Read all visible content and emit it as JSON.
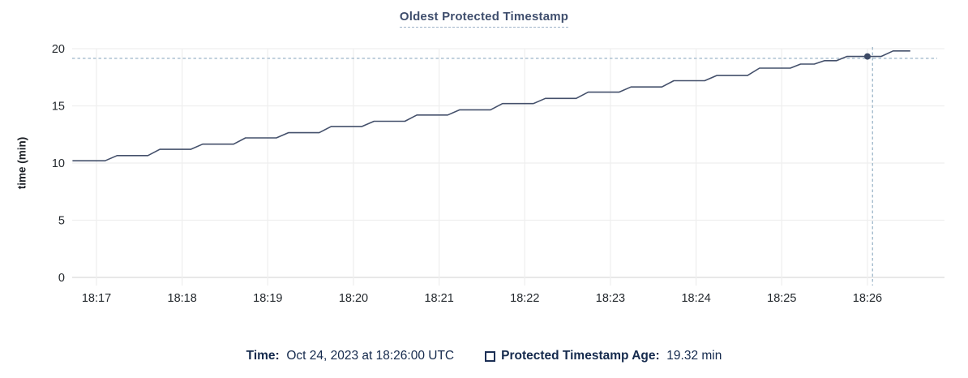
{
  "chart": {
    "title": "Oldest Protected Timestamp",
    "colors": {
      "line": "#44506b",
      "dot": "#3d4a66",
      "title_text": "#3f4e6d",
      "grid": "#efefef",
      "grid_zero": "#dbdbdb",
      "tick_text": "#24292e",
      "crosshair": "#a5bccd",
      "legend_text": "#152a4d",
      "background": "#ffffff"
    }
  },
  "chart_data": {
    "type": "line",
    "title": "Oldest Protected Timestamp",
    "xlabel": "",
    "ylabel": "time (min)",
    "ylim": [
      0,
      20
    ],
    "y_ticks": [
      0,
      5,
      10,
      15,
      20
    ],
    "x_ticks": [
      "18:17",
      "18:18",
      "18:19",
      "18:20",
      "18:21",
      "18:22",
      "18:23",
      "18:24",
      "18:25",
      "18:26"
    ],
    "x_unit": "minutes after 18:17 UTC",
    "grid": true,
    "series": [
      {
        "name": "Protected Timestamp Age",
        "points": [
          [
            -0.28,
            10.2
          ],
          [
            0.1,
            10.2
          ],
          [
            0.24,
            10.65
          ],
          [
            0.6,
            10.65
          ],
          [
            0.74,
            11.2
          ],
          [
            1.1,
            11.2
          ],
          [
            1.24,
            11.65
          ],
          [
            1.6,
            11.65
          ],
          [
            1.74,
            12.2
          ],
          [
            2.1,
            12.2
          ],
          [
            2.24,
            12.65
          ],
          [
            2.6,
            12.65
          ],
          [
            2.74,
            13.2
          ],
          [
            3.1,
            13.2
          ],
          [
            3.24,
            13.65
          ],
          [
            3.6,
            13.65
          ],
          [
            3.74,
            14.2
          ],
          [
            4.1,
            14.2
          ],
          [
            4.24,
            14.65
          ],
          [
            4.6,
            14.65
          ],
          [
            4.74,
            15.2
          ],
          [
            5.1,
            15.2
          ],
          [
            5.24,
            15.65
          ],
          [
            5.6,
            15.65
          ],
          [
            5.74,
            16.2
          ],
          [
            6.1,
            16.2
          ],
          [
            6.24,
            16.65
          ],
          [
            6.6,
            16.65
          ],
          [
            6.74,
            17.2
          ],
          [
            7.1,
            17.2
          ],
          [
            7.24,
            17.65
          ],
          [
            7.6,
            17.65
          ],
          [
            7.74,
            18.3
          ],
          [
            8.1,
            18.3
          ],
          [
            8.22,
            18.65
          ],
          [
            8.38,
            18.65
          ],
          [
            8.5,
            18.95
          ],
          [
            8.64,
            18.95
          ],
          [
            8.76,
            19.32
          ],
          [
            9.16,
            19.32
          ],
          [
            9.3,
            19.8
          ],
          [
            9.5,
            19.8
          ]
        ]
      }
    ],
    "hover": {
      "crosshair_t": 9.06,
      "crosshair_value": 19.15,
      "snapped_point_t": 9.0,
      "snapped_point_value": 19.32,
      "snapped_point_x_label": "18:26"
    }
  },
  "tooltip": {
    "time_label": "Time:",
    "time_value": "Oct 24, 2023 at 18:26:00 UTC",
    "series_label": "Protected Timestamp Age:",
    "series_value": "19.32 min"
  }
}
